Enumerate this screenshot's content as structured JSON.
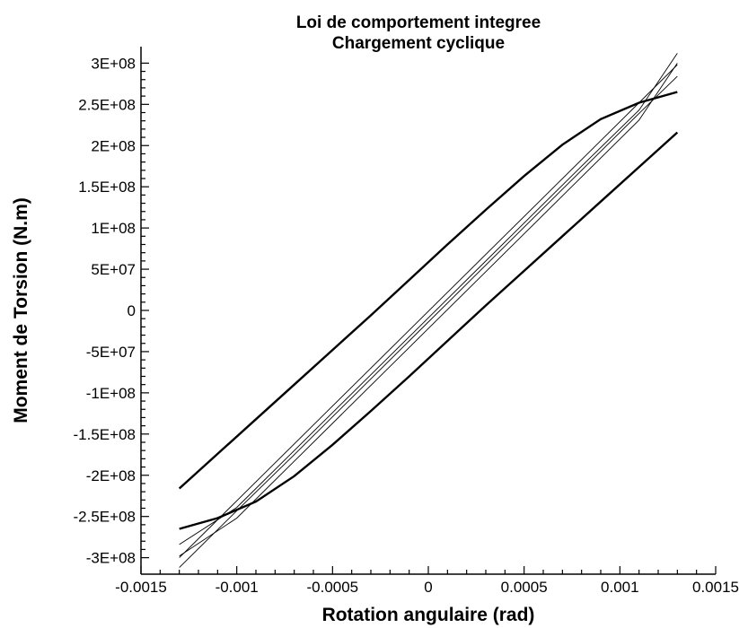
{
  "chart_data": {
    "type": "line",
    "title": "Loi de comportement integree",
    "subtitle": "Chargement cyclique",
    "xlabel": "Rotation angulaire (rad)",
    "ylabel": "Moment de Torsion (N.m)",
    "xlim": [
      -0.0015,
      0.0015
    ],
    "ylim": [
      -320000000,
      320000000
    ],
    "x_ticks": [
      -0.0015,
      -0.001,
      -0.0005,
      0,
      0.0005,
      0.001,
      0.0015
    ],
    "x_tick_labels": [
      "-0.0015",
      "-0.001",
      "-0.0005",
      "0",
      "0.0005",
      "0.001",
      "0.0015"
    ],
    "y_ticks": [
      300000000,
      250000000,
      200000000,
      150000000,
      100000000,
      50000000,
      0,
      -50000000,
      -100000000,
      -150000000,
      -200000000,
      -250000000,
      -300000000
    ],
    "y_tick_labels": [
      "3E+08",
      "2.5E+08",
      "2E+08",
      "1.5E+08",
      "1E+08",
      "5E+07",
      "0",
      "-5E+07",
      "-1E+08",
      "-1.5E+08",
      "-2E+08",
      "-2.5E+08",
      "-3E+08"
    ],
    "grid": false,
    "series": [
      {
        "x": [
          -0.0013,
          -0.0011,
          -0.0009,
          -0.0007,
          -0.0005,
          -0.0003,
          -0.0001,
          0.0001,
          0.0003,
          0.0005,
          0.0007,
          0.0009,
          0.0011,
          0.0013
        ],
        "values": [
          -265000000,
          -252000000,
          -232000000,
          -201000000,
          -163000000,
          -122000000,
          -80000000,
          -37000000,
          6000000,
          48000000,
          90000000,
          132000000,
          174000000,
          216000000
        ]
      },
      {
        "x": [
          -0.0013,
          -0.0011,
          -0.0009,
          -0.0007,
          -0.0005,
          -0.0003,
          -0.0001,
          0.0001,
          0.0003,
          0.0005,
          0.0007,
          0.0009,
          0.0011,
          0.0013
        ],
        "values": [
          -216000000,
          -174000000,
          -132000000,
          -90000000,
          -48000000,
          -6000000,
          37000000,
          80000000,
          122000000,
          163000000,
          201000000,
          232000000,
          252000000,
          265000000
        ]
      },
      {
        "x": [
          -0.0013,
          -0.001,
          -0.0007,
          -0.0004,
          -0.0001,
          0.0002,
          0.0005,
          0.0008,
          0.0011,
          0.0013
        ],
        "values": [
          -300000000,
          -231000000,
          -162000000,
          -93000000,
          -24000000,
          45000000,
          114000000,
          183000000,
          252000000,
          298000000
        ]
      },
      {
        "x": [
          -0.0013,
          -0.001,
          -0.0007,
          -0.0004,
          -0.0001,
          0.0002,
          0.0005,
          0.0008,
          0.0011,
          0.0013
        ],
        "values": [
          -298000000,
          -252000000,
          -183000000,
          -114000000,
          -45000000,
          24000000,
          93000000,
          162000000,
          231000000,
          300000000
        ]
      },
      {
        "x": [
          -0.0013,
          -0.001,
          -0.0007,
          -0.0004,
          -0.0001,
          0.0002,
          0.0005,
          0.0008,
          0.0011,
          0.0013
        ],
        "values": [
          -312000000,
          -243000000,
          -175000000,
          -106000000,
          -37000000,
          32000000,
          101000000,
          170000000,
          239000000,
          284000000
        ]
      },
      {
        "x": [
          -0.0013,
          -0.001,
          -0.0007,
          -0.0004,
          -0.0001,
          0.0002,
          0.0005,
          0.0008,
          0.0011,
          0.0013
        ],
        "values": [
          -284000000,
          -239000000,
          -170000000,
          -101000000,
          -32000000,
          37000000,
          106000000,
          175000000,
          243000000,
          312000000
        ]
      }
    ]
  }
}
